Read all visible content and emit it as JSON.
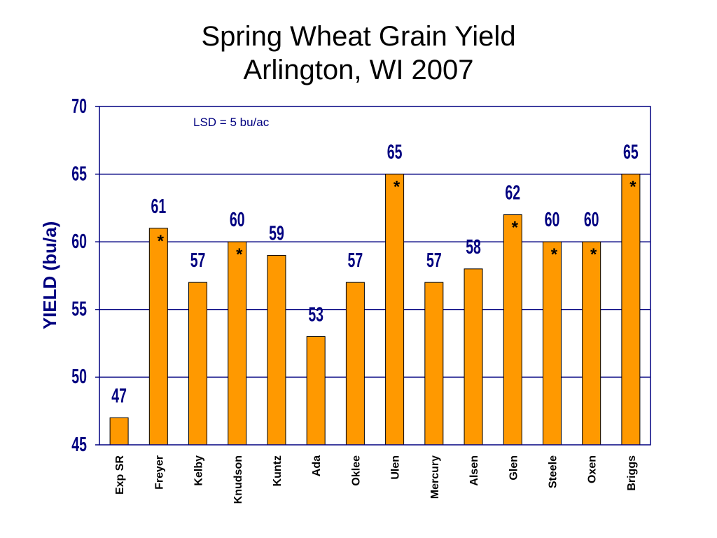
{
  "chart_data": {
    "type": "bar",
    "title": [
      "Spring Wheat Grain Yield",
      "Arlington, WI 2007"
    ],
    "xlabel": "",
    "ylabel": "YIELD (bu/a)",
    "ylim": [
      45,
      70
    ],
    "yticks": [
      45,
      50,
      55,
      60,
      65,
      70
    ],
    "grid": true,
    "annotation": "LSD = 5 bu/ac",
    "categories": [
      "Exp SR",
      "Freyer",
      "Kelby",
      "Knudson",
      "Kuntz",
      "Ada",
      "Oklee",
      "Ulen",
      "Mercury",
      "Alsen",
      "Glen",
      "Steele",
      "Oxen",
      "Briggs"
    ],
    "values": [
      47,
      61,
      57,
      60,
      59,
      53,
      57,
      65,
      57,
      58,
      62,
      60,
      60,
      65
    ],
    "significant": [
      false,
      true,
      false,
      true,
      false,
      false,
      false,
      true,
      false,
      false,
      true,
      true,
      true,
      true
    ],
    "significance_marker": "*",
    "colors": {
      "bar": "#FF9900",
      "bar_outline": "#000000",
      "axis": "#000080",
      "grid": "#000080",
      "text": "#000080"
    }
  }
}
